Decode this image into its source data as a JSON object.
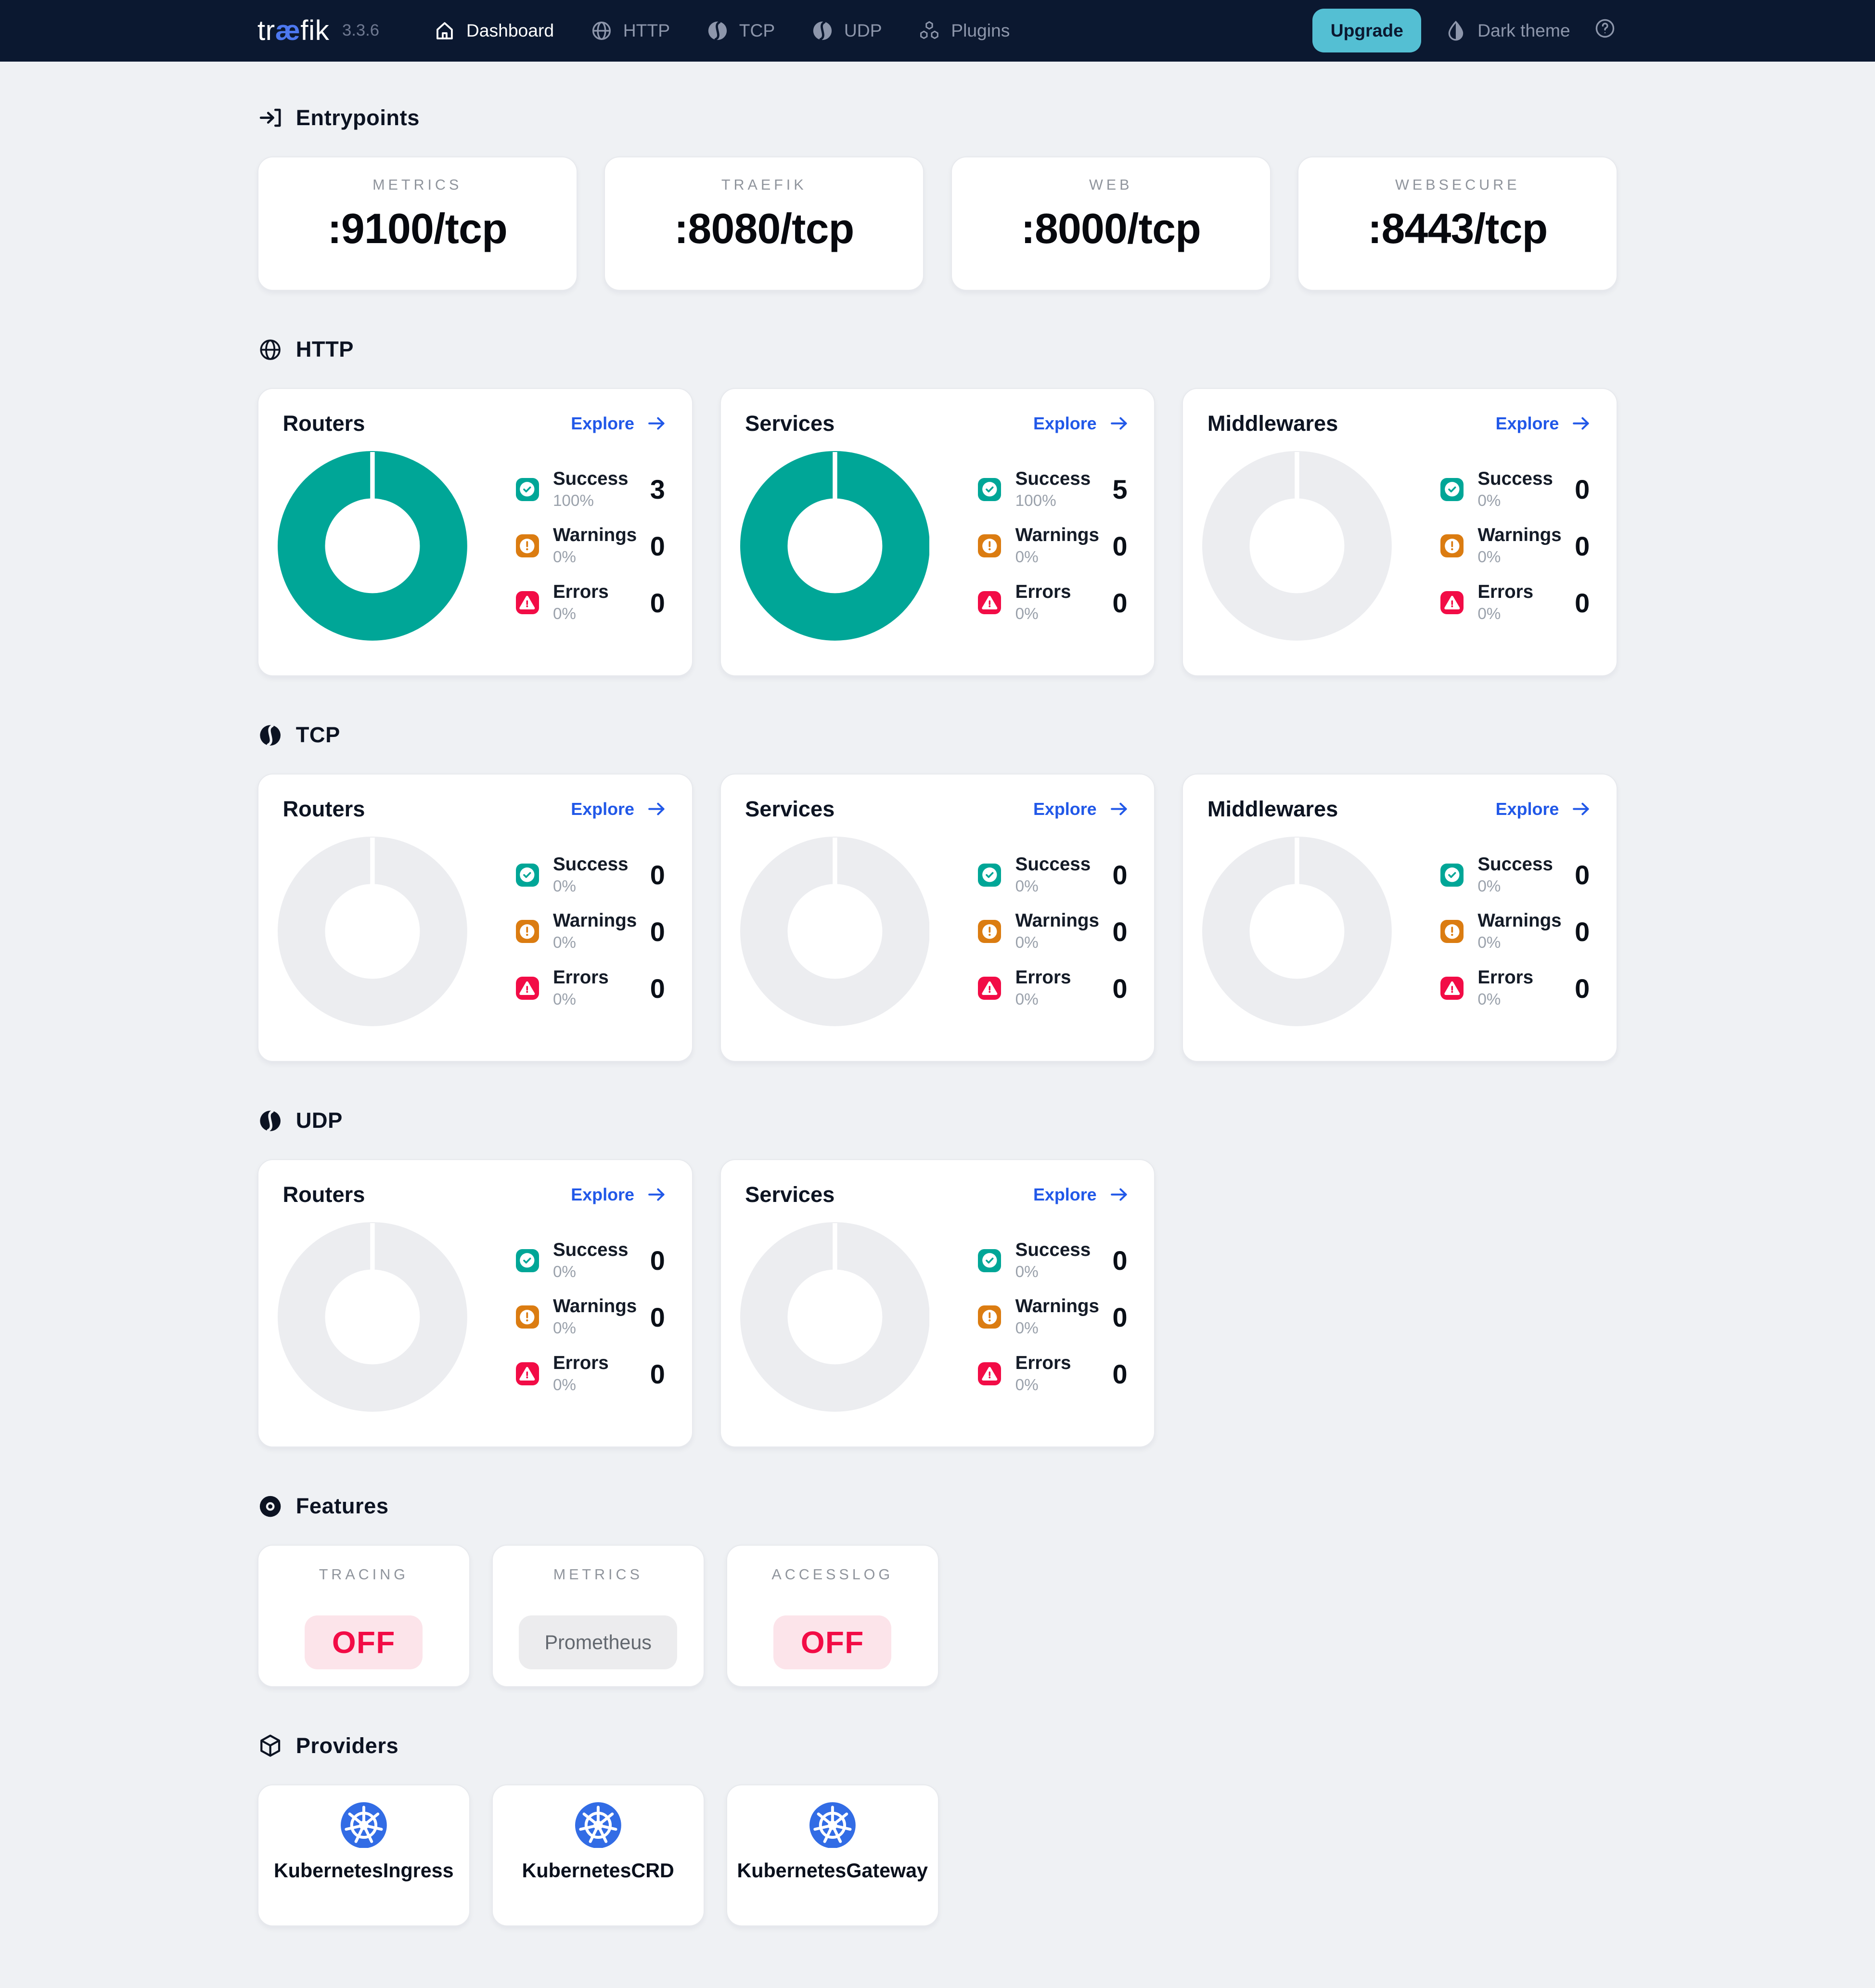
{
  "navbar": {
    "logo": {
      "pre": "tr",
      "ae": "æ",
      "post": "fik"
    },
    "version": "3.3.6",
    "nav_items": [
      {
        "id": "dashboard",
        "label": "Dashboard",
        "icon": "home-icon",
        "active": true
      },
      {
        "id": "http",
        "label": "HTTP",
        "icon": "globe-icon",
        "active": false
      },
      {
        "id": "tcp",
        "label": "TCP",
        "icon": "protocol-icon",
        "active": false
      },
      {
        "id": "udp",
        "label": "UDP",
        "icon": "protocol-icon",
        "active": false
      },
      {
        "id": "plugins",
        "label": "Plugins",
        "icon": "plugins-icon",
        "active": false
      }
    ],
    "upgrade_label": "Upgrade",
    "theme_toggle_label": "Dark theme"
  },
  "entrypoints": {
    "title": "Entrypoints",
    "cards": [
      {
        "name": "METRICS",
        "port": ":9100/tcp"
      },
      {
        "name": "TRAEFIK",
        "port": ":8080/tcp"
      },
      {
        "name": "WEB",
        "port": ":8000/tcp"
      },
      {
        "name": "WEBSECURE",
        "port": ":8443/tcp"
      }
    ]
  },
  "proto_sections": [
    {
      "id": "http",
      "title": "HTTP",
      "icon": "globe-icon",
      "cards": [
        {
          "title": "Routers",
          "explore_label": "Explore",
          "donut_pct": 100,
          "stats": [
            {
              "kind": "success",
              "label": "Success",
              "pct": "100%",
              "value": "3"
            },
            {
              "kind": "warning",
              "label": "Warnings",
              "pct": "0%",
              "value": "0"
            },
            {
              "kind": "error",
              "label": "Errors",
              "pct": "0%",
              "value": "0"
            }
          ]
        },
        {
          "title": "Services",
          "explore_label": "Explore",
          "donut_pct": 100,
          "stats": [
            {
              "kind": "success",
              "label": "Success",
              "pct": "100%",
              "value": "5"
            },
            {
              "kind": "warning",
              "label": "Warnings",
              "pct": "0%",
              "value": "0"
            },
            {
              "kind": "error",
              "label": "Errors",
              "pct": "0%",
              "value": "0"
            }
          ]
        },
        {
          "title": "Middlewares",
          "explore_label": "Explore",
          "donut_pct": 0,
          "stats": [
            {
              "kind": "success",
              "label": "Success",
              "pct": "0%",
              "value": "0"
            },
            {
              "kind": "warning",
              "label": "Warnings",
              "pct": "0%",
              "value": "0"
            },
            {
              "kind": "error",
              "label": "Errors",
              "pct": "0%",
              "value": "0"
            }
          ]
        }
      ]
    },
    {
      "id": "tcp",
      "title": "TCP",
      "icon": "protocol-icon",
      "cards": [
        {
          "title": "Routers",
          "explore_label": "Explore",
          "donut_pct": 0,
          "stats": [
            {
              "kind": "success",
              "label": "Success",
              "pct": "0%",
              "value": "0"
            },
            {
              "kind": "warning",
              "label": "Warnings",
              "pct": "0%",
              "value": "0"
            },
            {
              "kind": "error",
              "label": "Errors",
              "pct": "0%",
              "value": "0"
            }
          ]
        },
        {
          "title": "Services",
          "explore_label": "Explore",
          "donut_pct": 0,
          "stats": [
            {
              "kind": "success",
              "label": "Success",
              "pct": "0%",
              "value": "0"
            },
            {
              "kind": "warning",
              "label": "Warnings",
              "pct": "0%",
              "value": "0"
            },
            {
              "kind": "error",
              "label": "Errors",
              "pct": "0%",
              "value": "0"
            }
          ]
        },
        {
          "title": "Middlewares",
          "explore_label": "Explore",
          "donut_pct": 0,
          "stats": [
            {
              "kind": "success",
              "label": "Success",
              "pct": "0%",
              "value": "0"
            },
            {
              "kind": "warning",
              "label": "Warnings",
              "pct": "0%",
              "value": "0"
            },
            {
              "kind": "error",
              "label": "Errors",
              "pct": "0%",
              "value": "0"
            }
          ]
        }
      ]
    },
    {
      "id": "udp",
      "title": "UDP",
      "icon": "protocol-icon",
      "cards": [
        {
          "title": "Routers",
          "explore_label": "Explore",
          "donut_pct": 0,
          "stats": [
            {
              "kind": "success",
              "label": "Success",
              "pct": "0%",
              "value": "0"
            },
            {
              "kind": "warning",
              "label": "Warnings",
              "pct": "0%",
              "value": "0"
            },
            {
              "kind": "error",
              "label": "Errors",
              "pct": "0%",
              "value": "0"
            }
          ]
        },
        {
          "title": "Services",
          "explore_label": "Explore",
          "donut_pct": 0,
          "stats": [
            {
              "kind": "success",
              "label": "Success",
              "pct": "0%",
              "value": "0"
            },
            {
              "kind": "warning",
              "label": "Warnings",
              "pct": "0%",
              "value": "0"
            },
            {
              "kind": "error",
              "label": "Errors",
              "pct": "0%",
              "value": "0"
            }
          ]
        }
      ]
    }
  ],
  "features": {
    "title": "Features",
    "cards": [
      {
        "name": "TRACING",
        "value": "OFF",
        "state": "off"
      },
      {
        "name": "METRICS",
        "value": "Prometheus",
        "state": "neutral"
      },
      {
        "name": "ACCESSLOG",
        "value": "OFF",
        "state": "off"
      }
    ]
  },
  "providers": {
    "title": "Providers",
    "cards": [
      {
        "name": "KubernetesIngress"
      },
      {
        "name": "KubernetesCRD"
      },
      {
        "name": "KubernetesGateway"
      }
    ]
  },
  "colors": {
    "navbar_bg": "#0b1830",
    "page_bg": "#eff1f4",
    "success_teal": "#00a697",
    "warning_orange": "#db7c11",
    "error_red": "#f20c46",
    "link_blue": "#2158e8",
    "upgrade_cyan": "#54bfd3",
    "kubernetes_blue": "#326ce5",
    "logo_ae_blue": "#4d78f0",
    "donut_empty": "#ecedf0",
    "off_pill_bg": "#fce4ea",
    "neutral_pill_bg": "#ececee"
  }
}
